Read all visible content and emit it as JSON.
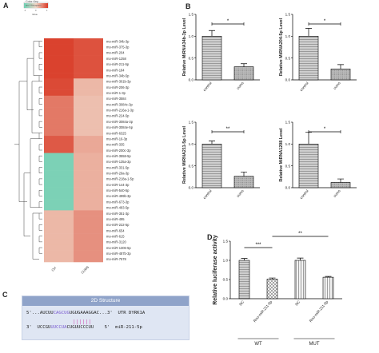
{
  "panels": {
    "a": "A",
    "b": "B",
    "c": "C",
    "d": "D"
  },
  "colors": {
    "high": "#d93a26",
    "mid": "#e9b39b",
    "low": "#6fd0b4",
    "bar": "#bdbdbd",
    "purple": "#7a5bd0",
    "pink": "#d04fb0"
  },
  "heatmap": {
    "key_title": "Color Key",
    "key_subtitle": "and Histogram",
    "key_ticks": [
      "-1",
      "0",
      "1"
    ],
    "key_xlabel": "Value",
    "columns": [
      "Ctrl",
      "CUMS"
    ],
    "rows": [
      "mo-miR-34b-3p",
      "mo-miR-375-3p",
      "mo-miR-204",
      "mo-miR-1258",
      "mo-miR-211-5p",
      "mo-miR-184",
      "mo-miR-34b-5p",
      "mo-miR-301b-3p",
      "mo-miR-206-3p",
      "mo-miR-1-3p",
      "mo-miR-3584",
      "mo-miR-3084c-3p",
      "mo-miR-216a-1-3p",
      "mo-miR-224-5p",
      "mo-miR-3084a-3p",
      "mo-miR-3084e-5p",
      "mo-miR-6325",
      "mo-miR-16-3p",
      "mo-miR-335",
      "mo-miR-200c-3p",
      "mo-miR-3558-5p",
      "mo-miR-135a-3p",
      "mo-miR-331-5p",
      "mo-miR-29a-3p",
      "mo-miR-218a-1-5p",
      "mo-miR-144-3p",
      "mo-miR-540-5p",
      "mo-miR-499b-3p",
      "mo-miR-673-3p",
      "mo-miR-483-5p",
      "mo-miR-351-3p",
      "mo-miR-495",
      "mo-miR-222-5p",
      "mo-miR-654",
      "mo-miR-615",
      "mo-miR-3120",
      "mo-miR-1306-5p",
      "mo-miR-487b-3p",
      "mo-miR-7578"
    ],
    "rows_display": [
      "mo-miR-34b-3p",
      "mo-miR-375-3p",
      "mo-miR-204",
      "mo-miR-1258",
      "mo-miR-211-5p",
      "mo-miR-184",
      "mo-miR-34b-5p",
      "mo-miR-301b-3p",
      "mo-miR-206-3p",
      "mo-miR-1-3p",
      "mo-miR-3584",
      "mo-miR-3084c-3p",
      "mo-miR-216a-1-3p",
      "mo-miR-224-5p",
      "mo-miR-3084a-3p",
      "mo-miR-3084e-5p",
      "mo-miR-6325",
      "mo-miR-16-3p",
      "mo-miR-335",
      "mo-miR-200c-3p",
      "mo-miR-3558-5p",
      "mo-miR-135a-3p",
      "mo-miR-331-5p",
      "mo-miR-29a-3p",
      "mo-miR-218a-1-5p",
      "mo-miR-144-3p",
      "mo-miR-540-5p",
      "mo-miR-499b-3p",
      "mo-miR-673-3p",
      "mo-miR-483-5p",
      "mo-miR-351-3p",
      "mo-miR-495",
      "mo-miR-222-5p",
      "mo-miR-654",
      "mo-miR-615",
      "mo-miR-3120",
      "mo-miR-1306-5p",
      "mo-miR-487b-3p",
      "mo-miR-7578"
    ]
  },
  "structure": {
    "title": "2D Structure",
    "line1_prefix": "5'...AUCUU",
    "line1_hl": "CAGCUG",
    "line1_suffix": "UGUGAAAGGAC...3'  UTR DYRK1A",
    "pairs": "||||||",
    "line2_prefix": "3'  UCCGU",
    "line2_hl": "UUCCUA",
    "line2_suffix": "CUGUUCCCUU    5'  miR-211-5p"
  },
  "chart_data": [
    {
      "type": "bar",
      "panel": "B",
      "ylabel": "Relative MiRNA34b-3p Level",
      "categories": [
        "control",
        "cums"
      ],
      "values": [
        1.0,
        0.3
      ],
      "errors": [
        0.13,
        0.07
      ],
      "ylim": [
        0,
        1.5
      ],
      "yticks": [
        "0.0",
        "0.5",
        "1.0",
        "1.5"
      ],
      "significance": "*"
    },
    {
      "type": "bar",
      "panel": "B",
      "ylabel": "Relative MiRNA204-5p Level",
      "categories": [
        "control",
        "cums"
      ],
      "values": [
        1.0,
        0.25
      ],
      "errors": [
        0.18,
        0.1
      ],
      "ylim": [
        0,
        1.5
      ],
      "yticks": [
        "0.0",
        "0.5",
        "1.0",
        "1.5"
      ],
      "significance": "*"
    },
    {
      "type": "bar",
      "panel": "B",
      "ylabel": "Relative MiRNA211-5p Level",
      "categories": [
        "control",
        "cums"
      ],
      "values": [
        1.0,
        0.26
      ],
      "errors": [
        0.07,
        0.1
      ],
      "ylim": [
        0,
        1.5
      ],
      "yticks": [
        "0.0",
        "0.5",
        "1.0",
        "1.5"
      ],
      "significance": "**"
    },
    {
      "type": "bar",
      "panel": "B",
      "ylabel": "Relative MiRNA1298 Level",
      "categories": [
        "control",
        "cums"
      ],
      "values": [
        1.0,
        0.12
      ],
      "errors": [
        0.27,
        0.08
      ],
      "ylim": [
        0,
        1.5
      ],
      "yticks": [
        "0.0",
        "0.5",
        "1.0",
        "1.5"
      ],
      "significance": "*"
    },
    {
      "type": "bar",
      "panel": "D",
      "ylabel": "Relative luciferase activity",
      "categories": [
        "NC",
        "Rno-miR-211-5p",
        "NC",
        "Rno-miR-211-5p"
      ],
      "groups": [
        "WT",
        "MUT"
      ],
      "values": [
        1.0,
        0.51,
        1.0,
        0.56
      ],
      "errors": [
        0.05,
        0.03,
        0.06,
        0.02
      ],
      "ylim": [
        0,
        1.5
      ],
      "yticks": [
        "0.0",
        "0.5",
        "1.0",
        "1.5"
      ],
      "significance": [
        "***",
        "**"
      ]
    }
  ]
}
